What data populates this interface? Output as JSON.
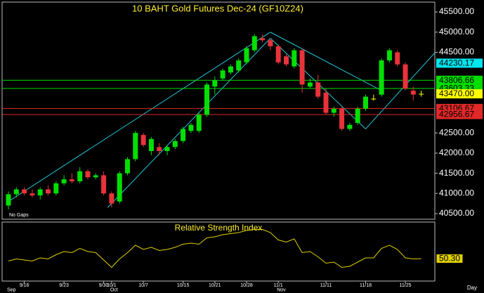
{
  "chart_data": [
    {
      "type": "candlestick",
      "title": "10 BAHT Gold Futures Dec-24 (GF10Z24)",
      "annotation": "No Gaps",
      "x_label": "Day",
      "categories": [
        null,
        null,
        "9/16",
        null,
        null,
        null,
        null,
        "9/23",
        null,
        null,
        null,
        null,
        "9/30",
        "10/1",
        null,
        null,
        null,
        "10/7",
        null,
        null,
        null,
        null,
        "10/15",
        null,
        null,
        null,
        "10/21",
        null,
        null,
        null,
        "10/28",
        null,
        null,
        null,
        "11/1",
        null,
        null,
        null,
        null,
        null,
        "11/11",
        null,
        null,
        null,
        null,
        "11/18",
        null,
        null,
        null,
        null,
        "11/25",
        null,
        null
      ],
      "months": [
        "Sep",
        null,
        null,
        null,
        null,
        null,
        null,
        null,
        null,
        null,
        null,
        null,
        null,
        "Oct",
        null,
        null,
        null,
        null,
        null,
        null,
        null,
        null,
        null,
        null,
        null,
        null,
        null,
        null,
        null,
        null,
        null,
        null,
        null,
        null,
        "Nov",
        null,
        null,
        null,
        null,
        null,
        null,
        null,
        null,
        null,
        null,
        null,
        null,
        null,
        null,
        null,
        null,
        null,
        null
      ],
      "ohlc": [
        [
          40700,
          41050,
          40600,
          40980
        ],
        [
          40980,
          41150,
          40900,
          41100
        ],
        [
          41100,
          41150,
          40950,
          41000
        ],
        [
          41000,
          41100,
          40900,
          40950
        ],
        [
          40950,
          41150,
          40850,
          41100
        ],
        [
          41100,
          41200,
          40950,
          41000
        ],
        [
          41000,
          41300,
          40950,
          41250
        ],
        [
          41250,
          41450,
          41200,
          41350
        ],
        [
          41350,
          41500,
          41250,
          41300
        ],
        [
          41300,
          41650,
          41250,
          41550
        ],
        [
          41550,
          41600,
          41350,
          41400
        ],
        [
          41400,
          41500,
          41350,
          41450
        ],
        [
          41450,
          41550,
          40950,
          41000
        ],
        [
          41000,
          41050,
          40650,
          40750
        ],
        [
          40800,
          41550,
          40750,
          41500
        ],
        [
          41500,
          41900,
          41450,
          41850
        ],
        [
          41850,
          42550,
          41800,
          42500
        ],
        [
          42450,
          42500,
          42150,
          42200
        ],
        [
          42050,
          42400,
          41950,
          42350
        ],
        [
          42150,
          42250,
          41950,
          42050
        ],
        [
          42050,
          42200,
          41950,
          42150
        ],
        [
          42150,
          42350,
          42100,
          42300
        ],
        [
          42300,
          42650,
          42250,
          42600
        ],
        [
          42550,
          42750,
          42500,
          42700
        ],
        [
          42550,
          43000,
          42500,
          42950
        ],
        [
          42950,
          43750,
          42900,
          43700
        ],
        [
          43650,
          43900,
          43450,
          43800
        ],
        [
          43850,
          44100,
          43800,
          44050
        ],
        [
          44000,
          44200,
          43950,
          44150
        ],
        [
          44050,
          44350,
          44000,
          44300
        ],
        [
          44250,
          44650,
          44200,
          44600
        ],
        [
          44550,
          44950,
          44500,
          44900
        ],
        [
          44850,
          44950,
          44750,
          44800
        ],
        [
          44800,
          44850,
          44550,
          44650
        ],
        [
          44650,
          44700,
          44200,
          44250
        ],
        [
          44400,
          44450,
          44150,
          44200
        ],
        [
          44150,
          44600,
          44100,
          44550
        ],
        [
          44550,
          44600,
          43500,
          43700
        ],
        [
          43650,
          43850,
          43600,
          43750
        ],
        [
          43750,
          43950,
          43350,
          43400
        ],
        [
          43500,
          43600,
          42950,
          43000
        ],
        [
          43000,
          43150,
          42900,
          43100
        ],
        [
          43100,
          43150,
          42550,
          42600
        ],
        [
          42600,
          42750,
          42550,
          42700
        ],
        [
          42750,
          43150,
          42700,
          43100
        ],
        [
          43100,
          43450,
          43050,
          43400
        ],
        [
          43350,
          43450,
          43300,
          43350
        ],
        [
          43450,
          44350,
          43400,
          44300
        ],
        [
          44300,
          44600,
          44250,
          44550
        ],
        [
          44500,
          44550,
          44150,
          44200
        ],
        [
          44200,
          44250,
          43550,
          43600
        ],
        [
          43550,
          43650,
          43300,
          43450
        ],
        [
          43470,
          43550,
          43400,
          43470
        ]
      ],
      "up_color": "#00e000",
      "down_color": "#e8333a",
      "doji_color": "#ffff00",
      "ylim": [
        40360,
        45745
      ],
      "yticks": [
        {
          "value": 45500,
          "label": "45500.00"
        },
        {
          "value": 45000,
          "label": "45000.00"
        },
        {
          "value": 44500,
          "label": "44500.00"
        },
        {
          "value": 42500,
          "label": "42500.00"
        },
        {
          "value": 42000,
          "label": "42000.00"
        },
        {
          "value": 41500,
          "label": "41500.00"
        },
        {
          "value": 41000,
          "label": "41000.00"
        },
        {
          "value": 40500,
          "label": "40500.00"
        }
      ],
      "levels": [
        {
          "value": 44230.17,
          "color": "#00e5ee",
          "line": false
        },
        {
          "value": 43806.66,
          "color": "#00dd00",
          "line": true
        },
        {
          "value": 43603.33,
          "color": "#00dd00",
          "line": true
        },
        {
          "value": {
            "value": 43470,
            "label": "43470.00"
          },
          "color": "#ffff00",
          "line": false
        },
        {
          "value": 43106.67,
          "color": "#e02828",
          "line": true
        },
        {
          "value": 42956.67,
          "color": "#e02828",
          "line": true
        }
      ],
      "trend_lines": [
        {
          "color": "#20c8d8",
          "x": [
            0,
            33
          ],
          "y": [
            40800,
            45000
          ]
        },
        {
          "color": "#20c8d8",
          "x": [
            12.5,
            33
          ],
          "y": [
            40650,
            44850
          ]
        },
        {
          "color": "#20c8d8",
          "x": [
            33,
            47
          ],
          "y": [
            45000,
            43550
          ]
        },
        {
          "color": "#20c8d8",
          "x": [
            33,
            45
          ],
          "y": [
            44850,
            42600
          ]
        },
        {
          "color": "#20c8d8",
          "x": [
            45,
            54
          ],
          "y": [
            42600,
            44550
          ]
        }
      ]
    },
    {
      "type": "line",
      "title": "Relative Strength Index",
      "color": "#e0d000",
      "ylim": [
        29,
        85
      ],
      "values": [
        48,
        50,
        49,
        48,
        51,
        50,
        54,
        57,
        56,
        60,
        57,
        56,
        49,
        42,
        50,
        56,
        63,
        59,
        61,
        58,
        59,
        61,
        64,
        65,
        64,
        70,
        71,
        73,
        74,
        75,
        77,
        78,
        78,
        75,
        68,
        66,
        69,
        56,
        57,
        52,
        46,
        47,
        42,
        43,
        47,
        51,
        51,
        60,
        63,
        59,
        51,
        50,
        50.3
      ],
      "value_labels": [
        null,
        null,
        null,
        null,
        null,
        null,
        null,
        null,
        null,
        null,
        null,
        null,
        null,
        null,
        null,
        null,
        null,
        null,
        null,
        null,
        null,
        null,
        null,
        null,
        null,
        null,
        null,
        null,
        null,
        null,
        null,
        null,
        null,
        null,
        null,
        null,
        null,
        null,
        null,
        null,
        null,
        null,
        null,
        null,
        null,
        null,
        null,
        null,
        null,
        null,
        null,
        null,
        "50.30"
      ]
    }
  ]
}
